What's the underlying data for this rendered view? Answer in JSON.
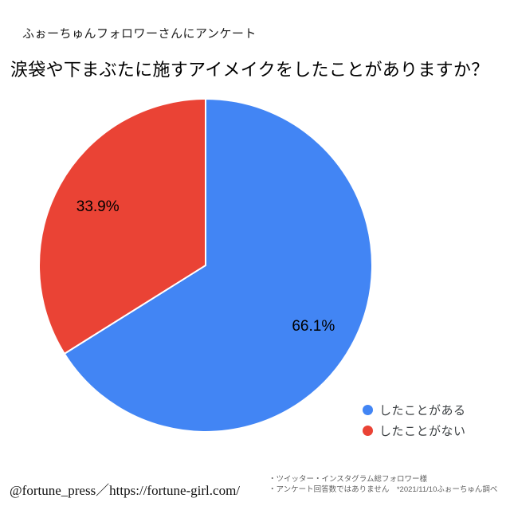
{
  "page": {
    "header_note": "ふぉーちゅんフォロワーさんにアンケート",
    "title": "涙袋や下まぶたに施すアイメイクをしたことがありますか？"
  },
  "chart_data": {
    "type": "pie",
    "title": "涙袋や下まぶたに施すアイメイクをしたことがありますか？",
    "start_at": "top",
    "direction": "clockwise",
    "legend_position": "bottom-right",
    "label_color": "#000000",
    "slice_separator_color": "#ffffff",
    "slices": [
      {
        "label": "したことがある",
        "value": 66.1,
        "display": "66.1%",
        "color": "#4285F4"
      },
      {
        "label": "したことがない",
        "value": 33.9,
        "display": "33.9%",
        "color": "#EA4335"
      }
    ]
  },
  "legend": {
    "items": [
      {
        "label": "したことがある",
        "color": "#4285F4"
      },
      {
        "label": "したことがない",
        "color": "#EA4335"
      }
    ]
  },
  "footer": {
    "credit": "@fortune_press／https://fortune-girl.com/",
    "notes": [
      "・ツイッター・インスタグラム総フォロワー様",
      "・アンケート回答数ではありません　*2021/11/10ふぉーちゅん調べ"
    ]
  }
}
